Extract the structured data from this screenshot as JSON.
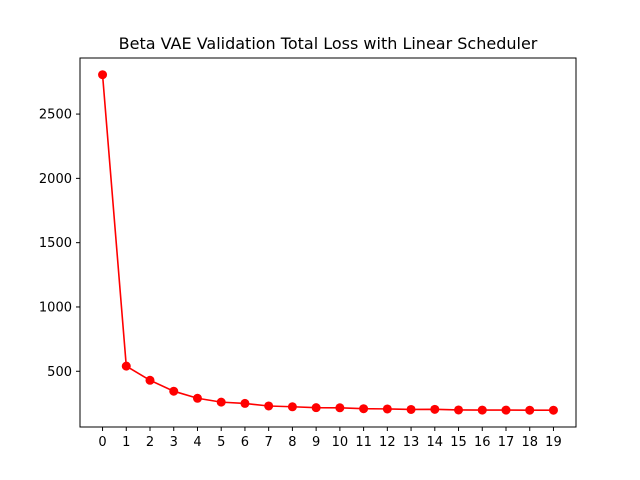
{
  "chart_data": {
    "type": "line",
    "title": "Beta VAE Validation Total Loss with Linear Scheduler",
    "xlabel": "",
    "ylabel": "",
    "x": [
      0,
      1,
      2,
      3,
      4,
      5,
      6,
      7,
      8,
      9,
      10,
      11,
      12,
      13,
      14,
      15,
      16,
      17,
      18,
      19
    ],
    "series": [
      {
        "values": [
          2806,
          540,
          430,
          345,
          290,
          260,
          250,
          230,
          224,
          217,
          216,
          209,
          207,
          203,
          204,
          199,
          198,
          198,
          197,
          197
        ],
        "color": "#ff0000",
        "marker": "circle"
      }
    ],
    "xticks": [
      "0",
      "1",
      "2",
      "3",
      "4",
      "5",
      "6",
      "7",
      "8",
      "9",
      "10",
      "11",
      "12",
      "13",
      "14",
      "15",
      "16",
      "17",
      "18",
      "19"
    ],
    "yticks": [
      {
        "value": 500,
        "label": "500"
      },
      {
        "value": 1000,
        "label": "1000"
      },
      {
        "value": 1500,
        "label": "1500"
      },
      {
        "value": 2000,
        "label": "2000"
      },
      {
        "value": 2500,
        "label": "2500"
      }
    ],
    "xlim": [
      -0.95,
      19.95
    ],
    "ylim": [
      66.6,
      2936
    ],
    "grid": false,
    "legend": "none"
  }
}
